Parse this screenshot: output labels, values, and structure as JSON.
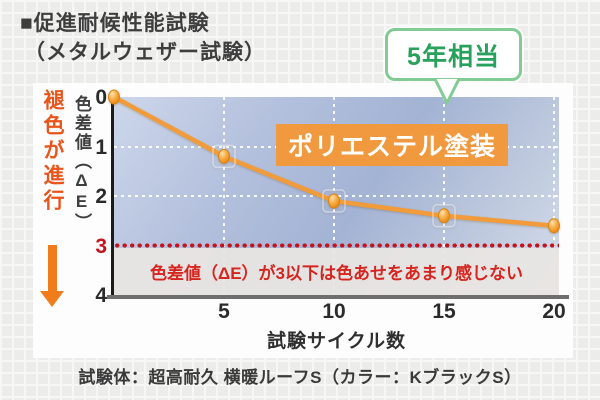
{
  "title": {
    "line1": "■促進耐候性能試験",
    "line2": "（メタルウェザー試験）"
  },
  "left_annotation": {
    "text": "褪色が進行",
    "icon": "down-arrow"
  },
  "caption": "試験体：超高耐久 横暖ルーフS（カラー：KブラックS）",
  "colors": {
    "fade_orange": "#e8541a",
    "arrow_orange": "#f07c1c",
    "line_orange": "#f19b3a",
    "label_orange": "#f0993e",
    "threshold_red": "#c2151d",
    "note_red": "#d6251e",
    "green_text": "#28a15c",
    "green_border": "#82cb93",
    "panel_bg": "#fdfdfd",
    "plot_bg_light": "#cdd6ea",
    "plot_bg_mid": "#a3b3d4",
    "plot_bg_light2": "#d5ddec"
  },
  "chart_data": {
    "type": "line",
    "title": "促進耐候性能試験（メタルウェザー試験）",
    "x": [
      0,
      5,
      10,
      15,
      20
    ],
    "series": [
      {
        "name": "ポリエステル塗装",
        "values": [
          0,
          1.2,
          2.1,
          2.4,
          2.6
        ],
        "color": "#f19b3a"
      }
    ],
    "xlabel": "試験サイクル数",
    "ylabel": "色差値（ΔE）",
    "ylabel_parts": {
      "main": "色差値",
      "open": "（",
      "delta": "ΔE",
      "close": "）"
    },
    "xlim": [
      0,
      20
    ],
    "ylim": [
      0,
      4
    ],
    "y_axis_inverted_downward": true,
    "x_ticks": [
      5,
      10,
      15,
      20
    ],
    "y_ticks": [
      0,
      1,
      2,
      3,
      4
    ],
    "h_gridlines": [
      1,
      2
    ],
    "grid": true,
    "legend_position": "none",
    "threshold": {
      "value": 3,
      "note": "色差値（ΔE）が3以下は色あせをあまり感じない"
    },
    "annotations": [
      {
        "text": "5年相当",
        "x": 15
      }
    ]
  }
}
